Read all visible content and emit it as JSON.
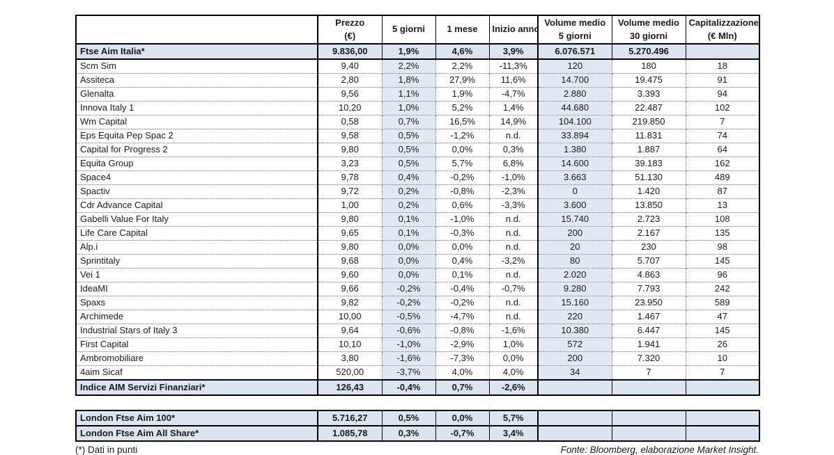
{
  "colors": {
    "row_highlight": "#dbe5f1",
    "column_highlight": "#dfe8f3",
    "border": "#000000"
  },
  "main_table": {
    "headers": [
      {
        "line1": "",
        "line2": ""
      },
      {
        "line1": "Prezzo",
        "line2": "(€)"
      },
      {
        "line1": "5 giorni",
        "line2": ""
      },
      {
        "line1": "1 mese",
        "line2": ""
      },
      {
        "line1": "Inizio anno",
        "line2": ""
      },
      {
        "line1": "Volume medio",
        "line2": "5 giorni"
      },
      {
        "line1": "Volume medio",
        "line2": "30 giorni"
      },
      {
        "line1": "Capitalizzazione",
        "line2": "(€ Mln)"
      }
    ],
    "index_row": {
      "name": "Ftse Aim Italia*",
      "values": [
        "9.836,00",
        "1,9%",
        "4,6%",
        "3,9%",
        "6.076.571",
        "5.270.496",
        ""
      ]
    },
    "rows": [
      {
        "name": "Scm Sim",
        "values": [
          "9,40",
          "2,2%",
          "2,2%",
          "-11,3%",
          "120",
          "180",
          "18"
        ]
      },
      {
        "name": "Assiteca",
        "values": [
          "2,80",
          "1,8%",
          "27,9%",
          "11,6%",
          "14.700",
          "19.475",
          "91"
        ]
      },
      {
        "name": "Glenalta",
        "values": [
          "9,56",
          "1,1%",
          "1,9%",
          "-4,7%",
          "2.880",
          "3.393",
          "94"
        ]
      },
      {
        "name": "Innova Italy 1",
        "values": [
          "10,20",
          "1,0%",
          "5,2%",
          "1,4%",
          "44.680",
          "22.487",
          "102"
        ]
      },
      {
        "name": "Wm Capital",
        "values": [
          "0,58",
          "0,7%",
          "16,5%",
          "14,9%",
          "104.100",
          "219.850",
          "7"
        ]
      },
      {
        "name": "Eps Equita Pep Spac 2",
        "values": [
          "9,58",
          "0,5%",
          "-1,2%",
          "n.d.",
          "33.894",
          "11.831",
          "74"
        ]
      },
      {
        "name": "Capital for Progress 2",
        "values": [
          "9,80",
          "0,5%",
          "0,0%",
          "0,3%",
          "1.380",
          "1.887",
          "64"
        ]
      },
      {
        "name": "Equita Group",
        "values": [
          "3,23",
          "0,5%",
          "5,7%",
          "6,8%",
          "14.600",
          "39.183",
          "162"
        ]
      },
      {
        "name": "Space4",
        "values": [
          "9,78",
          "0,4%",
          "-0,2%",
          "-1,0%",
          "3.663",
          "51.130",
          "489"
        ]
      },
      {
        "name": "Spactiv",
        "values": [
          "9,72",
          "0,2%",
          "-0,8%",
          "-2,3%",
          "0",
          "1.420",
          "87"
        ]
      },
      {
        "name": "Cdr Advance Capital",
        "values": [
          "1,00",
          "0,2%",
          "0,6%",
          "-3,3%",
          "3.600",
          "13.850",
          "13"
        ]
      },
      {
        "name": "Gabelli Value For Italy",
        "values": [
          "9,80",
          "0,1%",
          "-1,0%",
          "n.d.",
          "15.740",
          "2.723",
          "108"
        ]
      },
      {
        "name": "Life Care Capital",
        "values": [
          "9,65",
          "0,1%",
          "-0,3%",
          "n.d.",
          "200",
          "2.167",
          "135"
        ]
      },
      {
        "name": "Alp.i",
        "values": [
          "9,80",
          "0,0%",
          "0,0%",
          "n.d.",
          "20",
          "230",
          "98"
        ]
      },
      {
        "name": "Sprintitaly",
        "values": [
          "9,68",
          "0,0%",
          "0,4%",
          "-3,2%",
          "80",
          "5.707",
          "145"
        ]
      },
      {
        "name": "Vei 1",
        "values": [
          "9,60",
          "0,0%",
          "0,1%",
          "n.d.",
          "2.020",
          "4.863",
          "96"
        ]
      },
      {
        "name": "IdeaMI",
        "values": [
          "9,66",
          "-0,2%",
          "-0,4%",
          "-0,7%",
          "9.280",
          "7.793",
          "242"
        ]
      },
      {
        "name": "Spaxs",
        "values": [
          "9,82",
          "-0,2%",
          "-0,2%",
          "n.d.",
          "15.160",
          "23.950",
          "589"
        ]
      },
      {
        "name": "Archimede",
        "values": [
          "10,00",
          "-0,5%",
          "-4,7%",
          "n.d.",
          "220",
          "1.467",
          "47"
        ]
      },
      {
        "name": "Industrial Stars of Italy 3",
        "values": [
          "9,64",
          "-0,6%",
          "-0,8%",
          "-1,6%",
          "10.380",
          "6.447",
          "145"
        ]
      },
      {
        "name": "First Capital",
        "values": [
          "10,10",
          "-1,0%",
          "-2,9%",
          "1,0%",
          "572",
          "1.941",
          "26"
        ]
      },
      {
        "name": "Ambromobiliare",
        "values": [
          "3,80",
          "-1,6%",
          "-7,3%",
          "0,0%",
          "200",
          "7.320",
          "10"
        ]
      },
      {
        "name": "4aim Sicaf",
        "values": [
          "520,00",
          "-3,7%",
          "4,0%",
          "4,0%",
          "34",
          "7",
          "7"
        ]
      }
    ],
    "footer_index_row": {
      "name": "Indice AIM Servizi Finanziari*",
      "values": [
        "126,43",
        "-0,4%",
        "0,7%",
        "-2,6%",
        "",
        "",
        ""
      ]
    }
  },
  "london_table": {
    "rows": [
      {
        "name": "London Ftse Aim 100*",
        "values": [
          "5.716,27",
          "0,5%",
          "0,0%",
          "5,7%",
          "",
          "",
          ""
        ]
      },
      {
        "name": "London Ftse Aim All Share*",
        "values": [
          "1.085,78",
          "0,3%",
          "-0,7%",
          "3,4%",
          "",
          "",
          ""
        ]
      }
    ]
  },
  "notes": {
    "footnote": "(*) Dati in punti",
    "source": "Fonte: Bloomberg, elaborazione Market Insight."
  }
}
